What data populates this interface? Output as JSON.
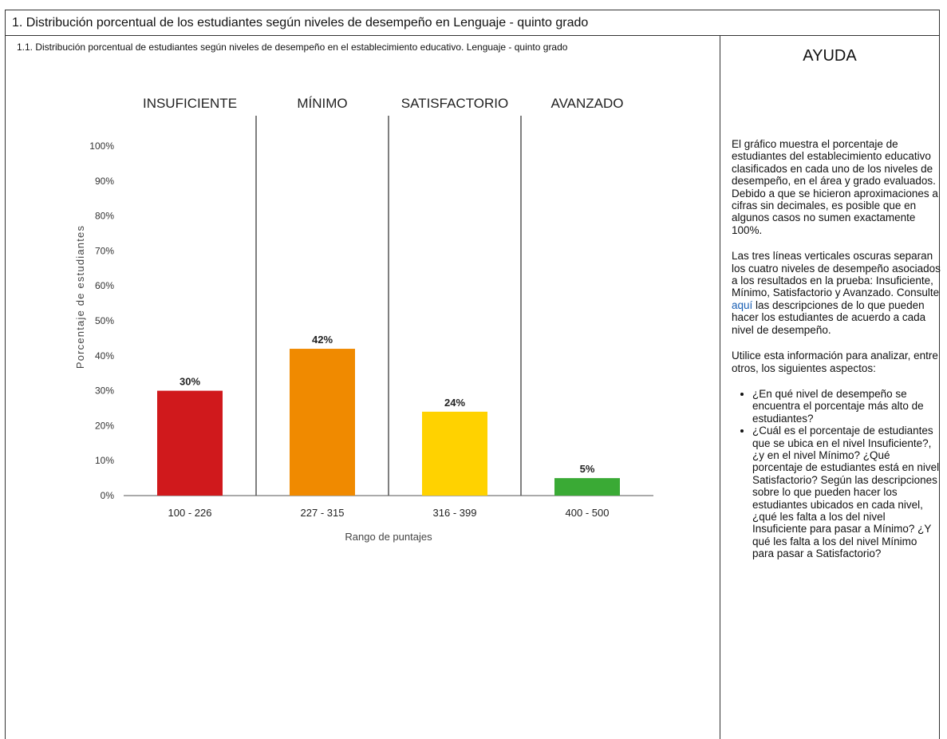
{
  "header": {
    "title": "1. Distribución porcentual de los estudiantes según niveles de desempeño en Lenguaje - quinto grado"
  },
  "chart_section": {
    "subtitle": "1.1. Distribución porcentual de estudiantes según niveles de desempeño en el establecimiento educativo. Lenguaje - quinto grado"
  },
  "chart_data": {
    "type": "bar",
    "levels": [
      "INSUFICIENTE",
      "MÍNIMO",
      "SATISFACTORIO",
      "AVANZADO"
    ],
    "categories": [
      "100 - 226",
      "227 - 315",
      "316 - 399",
      "400 - 500"
    ],
    "values": [
      30,
      42,
      24,
      5
    ],
    "value_labels": [
      "30%",
      "42%",
      "24%",
      "5%"
    ],
    "colors": [
      "#d0191c",
      "#f08a00",
      "#ffd200",
      "#3aaa35"
    ],
    "xlabel": "Rango de puntajes",
    "ylabel": "Porcentaje de estudiantes",
    "ylim": [
      0,
      100
    ],
    "yticks": [
      0,
      10,
      20,
      30,
      40,
      50,
      60,
      70,
      80,
      90,
      100
    ],
    "ytick_labels": [
      "0%",
      "10%",
      "20%",
      "30%",
      "40%",
      "50%",
      "60%",
      "70%",
      "80%",
      "90%",
      "100%"
    ],
    "grid": false
  },
  "help": {
    "title": "AYUDA",
    "paragraph1": "El gráfico muestra el porcentaje de estudiantes del establecimiento educativo clasificados en cada uno de los niveles de desempeño, en el área y grado evaluados. Debido a que se hicieron aproximaciones a cifras sin decimales, es posible que en algunos casos no sumen exactamente 100%.",
    "paragraph2_before_link": "Las tres líneas verticales oscuras separan los cuatro niveles de desempeño asociados a los resultados en la prueba: Insuficiente, Mínimo, Satisfactorio y Avanzado. Consulte ",
    "paragraph2_link": "aquí",
    "paragraph2_after_link": " las descripciones de lo que pueden hacer los estudiantes de acuerdo a cada nivel de desempeño.",
    "paragraph3": "Utilice esta información para analizar, entre otros, los siguientes aspectos:",
    "bullets": [
      "¿En qué nivel de desempeño se encuentra el porcentaje más alto de estudiantes?",
      "¿Cuál es el porcentaje de estudiantes que se ubica en el nivel Insuficiente?, ¿y en el nivel Mínimo? ¿Qué porcentaje de estudiantes está en nivel Satisfactorio? Según las descripciones sobre lo que pueden hacer los estudiantes ubicados en cada nivel, ¿qué les falta a los del nivel Insuficiente para pasar a Mínimo? ¿Y qué les falta a los del nivel Mínimo para pasar a Satisfactorio?"
    ]
  }
}
